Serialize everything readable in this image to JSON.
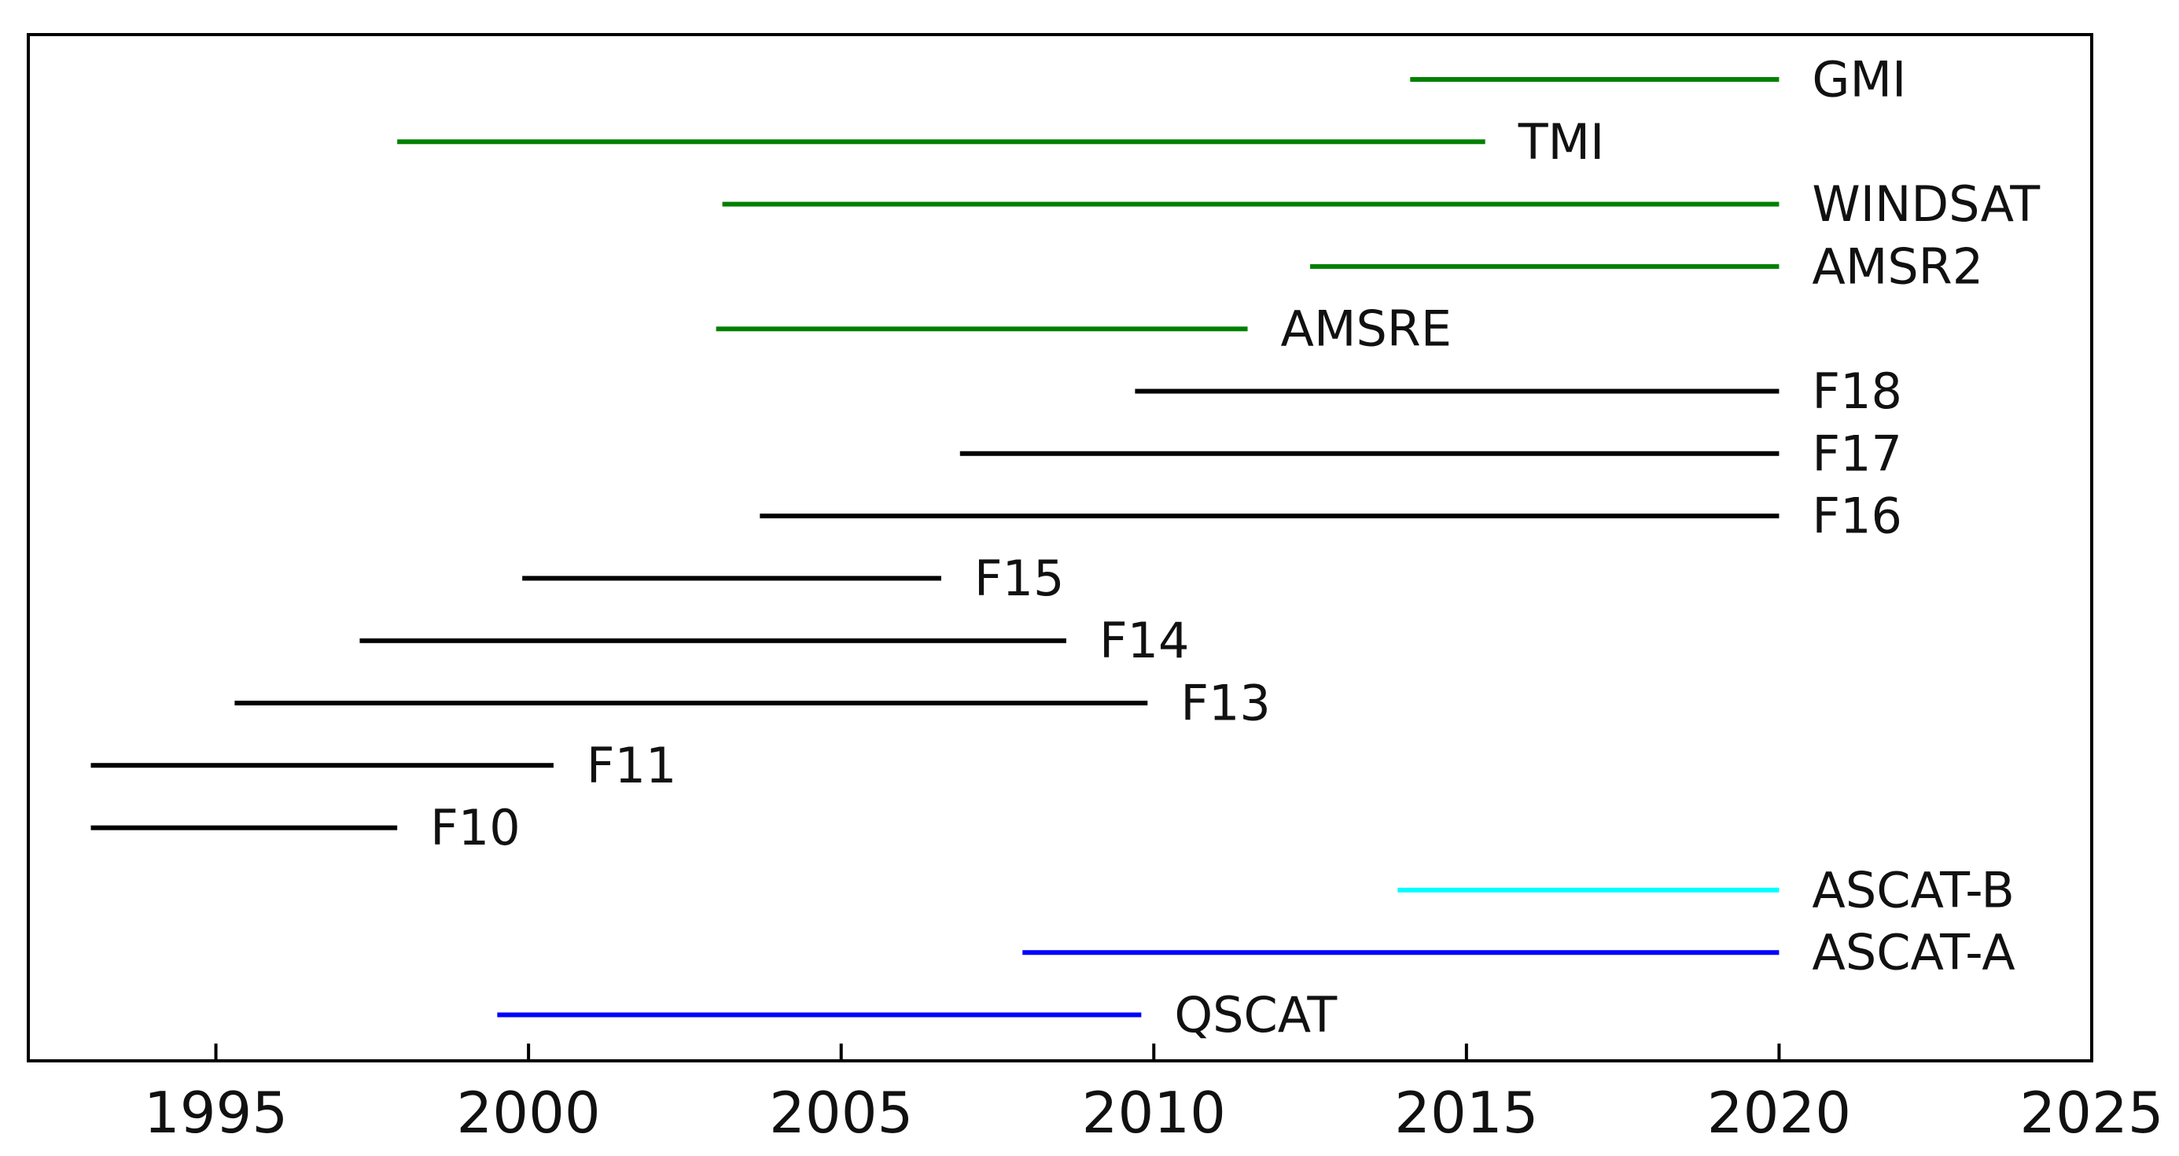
{
  "chart_data": {
    "type": "timeline",
    "title": "",
    "xlabel": "",
    "ylabel": "",
    "xlim": [
      1992,
      2025
    ],
    "x_ticks": [
      "1995",
      "2000",
      "2005",
      "2010",
      "2015",
      "2020",
      "2025"
    ],
    "grid": false,
    "series": [
      {
        "name": "GMI",
        "start": 2014.1,
        "end": 2020.0,
        "color": "#008000"
      },
      {
        "name": "TMI",
        "start": 1997.9,
        "end": 2015.3,
        "color": "#008000"
      },
      {
        "name": "WINDSAT",
        "start": 2003.1,
        "end": 2020.0,
        "color": "#008000"
      },
      {
        "name": "AMSR2",
        "start": 2012.5,
        "end": 2020.0,
        "color": "#008000"
      },
      {
        "name": "AMSRE",
        "start": 2003.0,
        "end": 2011.5,
        "color": "#008000"
      },
      {
        "name": "F18",
        "start": 2009.7,
        "end": 2020.0,
        "color": "#000000"
      },
      {
        "name": "F17",
        "start": 2006.9,
        "end": 2020.0,
        "color": "#000000"
      },
      {
        "name": "F16",
        "start": 2003.7,
        "end": 2020.0,
        "color": "#000000"
      },
      {
        "name": "F15",
        "start": 1999.9,
        "end": 2006.6,
        "color": "#000000"
      },
      {
        "name": "F14",
        "start": 1997.3,
        "end": 2008.6,
        "color": "#000000"
      },
      {
        "name": "F13",
        "start": 1995.3,
        "end": 2009.9,
        "color": "#000000"
      },
      {
        "name": "F11",
        "start": 1993.0,
        "end": 2000.4,
        "color": "#000000"
      },
      {
        "name": "F10",
        "start": 1993.0,
        "end": 1997.9,
        "color": "#000000"
      },
      {
        "name": "ASCAT-B",
        "start": 2013.9,
        "end": 2020.0,
        "color": "#00ffff"
      },
      {
        "name": "ASCAT-A",
        "start": 2007.9,
        "end": 2020.0,
        "color": "#0000ff"
      },
      {
        "name": "QSCAT",
        "start": 1999.5,
        "end": 2009.8,
        "color": "#0000ff"
      }
    ]
  }
}
